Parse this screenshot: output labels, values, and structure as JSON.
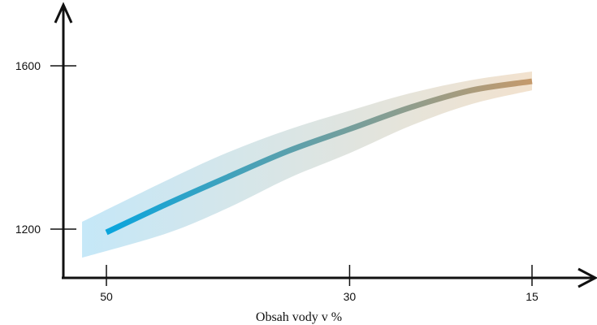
{
  "chart_data": {
    "type": "line",
    "xlabel": "Obsah vody v %",
    "ylabel": "",
    "x_reversed": true,
    "xlim": [
      55,
      7.5
    ],
    "ylim": [
      1110,
      1740
    ],
    "x_ticks": [
      50,
      30,
      15
    ],
    "x_tick_labels": [
      "50",
      "30",
      "15"
    ],
    "y_ticks": [
      1200,
      1600
    ],
    "y_tick_labels": [
      "1200",
      "1600"
    ],
    "grid": false,
    "colors": {
      "line_start": "#0aa5dd",
      "line_end": "#c59a6c",
      "band_start": "#bfe5f7",
      "band_end": "#f1dfc9",
      "axis": "#111111"
    },
    "series": [
      {
        "x": [
          50,
          45,
          40,
          35,
          30,
          25,
          20,
          15
        ],
        "y": [
          1192,
          1262,
          1328,
          1392,
          1445,
          1498,
          1540,
          1562
        ]
      }
    ],
    "band": {
      "x": [
        52,
        45,
        40,
        35,
        30,
        25,
        20,
        15
      ],
      "upper": [
        1218,
        1320,
        1388,
        1444,
        1490,
        1533,
        1565,
        1586
      ],
      "lower": [
        1130,
        1190,
        1252,
        1325,
        1386,
        1453,
        1506,
        1540
      ]
    }
  }
}
